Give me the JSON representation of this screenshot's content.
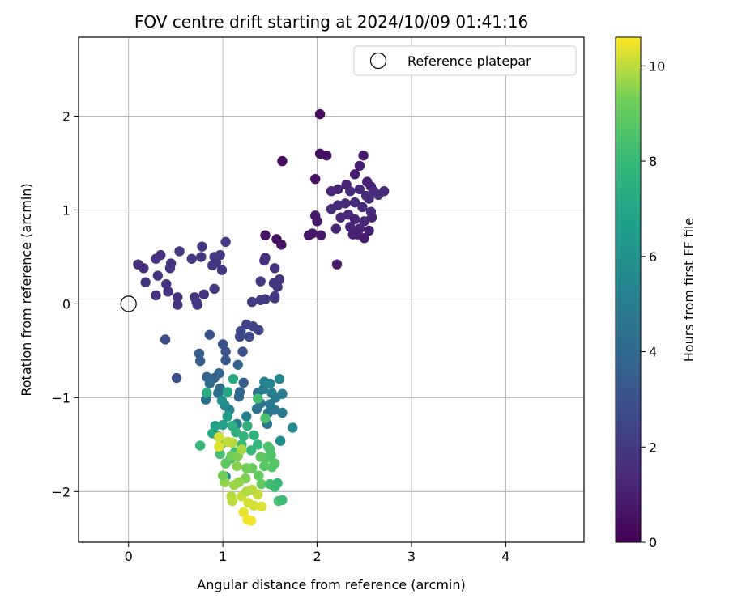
{
  "chart_data": {
    "type": "scatter",
    "title": "FOV centre drift starting at 2024/10/09 01:41:16",
    "xlabel": "Angular distance from reference (arcmin)",
    "ylabel": "Rotation from reference (arcmin)",
    "xlim": [
      -0.53,
      4.83
    ],
    "ylim": [
      -2.54,
      2.84
    ],
    "xticks": [
      0,
      1,
      2,
      3,
      4
    ],
    "yticks": [
      -2,
      -1,
      0,
      1,
      2
    ],
    "grid": true,
    "legend": {
      "placement": "top-right",
      "entries": [
        "Reference platepar"
      ]
    },
    "colormap": "viridis",
    "colorbar": {
      "label": "Hours from first FF file",
      "range": [
        0,
        10.6
      ],
      "ticks": [
        0,
        2,
        4,
        6,
        8,
        10
      ]
    },
    "reference_point": {
      "x": 0,
      "y": 0
    },
    "points": [
      [
        2.03,
        2.02,
        0.3
      ],
      [
        1.63,
        1.52,
        0.4
      ],
      [
        2.03,
        1.6,
        0.5
      ],
      [
        2.1,
        1.58,
        0.5
      ],
      [
        1.98,
        1.33,
        0.6
      ],
      [
        2.49,
        1.58,
        0.9
      ],
      [
        2.45,
        1.47,
        1.0
      ],
      [
        2.4,
        1.38,
        1.0
      ],
      [
        2.53,
        1.3,
        1.1
      ],
      [
        2.57,
        1.25,
        1.1
      ],
      [
        2.31,
        1.27,
        1.2
      ],
      [
        2.22,
        1.22,
        1.3
      ],
      [
        2.15,
        1.2,
        1.3
      ],
      [
        2.35,
        1.2,
        1.4
      ],
      [
        2.45,
        1.22,
        1.4
      ],
      [
        2.52,
        1.15,
        1.5
      ],
      [
        2.6,
        1.2,
        1.5
      ],
      [
        2.71,
        1.2,
        1.5
      ],
      [
        2.65,
        1.16,
        1.5
      ],
      [
        2.55,
        1.12,
        1.5
      ],
      [
        2.3,
        1.07,
        1.5
      ],
      [
        2.22,
        1.05,
        1.5
      ],
      [
        2.15,
        1.01,
        1.5
      ],
      [
        2.4,
        1.08,
        1.4
      ],
      [
        2.48,
        1.03,
        1.4
      ],
      [
        2.57,
        0.98,
        1.4
      ],
      [
        2.33,
        0.95,
        1.4
      ],
      [
        2.25,
        0.92,
        1.3
      ],
      [
        2.4,
        0.9,
        1.3
      ],
      [
        2.5,
        0.88,
        1.3
      ],
      [
        2.58,
        0.92,
        1.2
      ],
      [
        2.45,
        0.8,
        1.2
      ],
      [
        2.35,
        0.82,
        1.2
      ],
      [
        2.2,
        0.8,
        1.2
      ],
      [
        2.55,
        0.78,
        1.1
      ],
      [
        2.43,
        0.74,
        1.1
      ],
      [
        2.38,
        0.74,
        1.1
      ],
      [
        2.5,
        0.7,
        1.0
      ],
      [
        1.98,
        0.94,
        0.8
      ],
      [
        2.0,
        0.88,
        0.8
      ],
      [
        1.95,
        0.75,
        0.8
      ],
      [
        2.04,
        0.73,
        0.8
      ],
      [
        1.91,
        0.73,
        0.7
      ],
      [
        2.21,
        0.42,
        0.9
      ],
      [
        1.45,
        0.73,
        0.6
      ],
      [
        1.57,
        0.69,
        0.6
      ],
      [
        1.62,
        0.63,
        0.6
      ],
      [
        1.45,
        0.49,
        1.6
      ],
      [
        1.44,
        0.46,
        1.7
      ],
      [
        1.55,
        0.38,
        1.8
      ],
      [
        1.6,
        0.26,
        1.8
      ],
      [
        1.54,
        0.22,
        1.9
      ],
      [
        1.4,
        0.24,
        1.9
      ],
      [
        1.58,
        0.18,
        1.9
      ],
      [
        1.55,
        0.08,
        2.0
      ],
      [
        1.55,
        0.06,
        2.0
      ],
      [
        1.45,
        0.05,
        2.0
      ],
      [
        1.4,
        0.04,
        2.1
      ],
      [
        1.31,
        0.02,
        2.1
      ],
      [
        0.1,
        0.42,
        1.6
      ],
      [
        0.16,
        0.38,
        1.6
      ],
      [
        0.29,
        0.48,
        1.7
      ],
      [
        0.34,
        0.52,
        1.7
      ],
      [
        0.45,
        0.43,
        1.8
      ],
      [
        0.44,
        0.38,
        1.8
      ],
      [
        0.54,
        0.56,
        1.9
      ],
      [
        0.67,
        0.48,
        1.9
      ],
      [
        0.78,
        0.61,
        2.0
      ],
      [
        0.77,
        0.5,
        2.0
      ],
      [
        0.91,
        0.5,
        2.0
      ],
      [
        0.97,
        0.52,
        2.0
      ],
      [
        1.03,
        0.66,
        2.0
      ],
      [
        0.93,
        0.44,
        1.9
      ],
      [
        0.89,
        0.41,
        1.9
      ],
      [
        0.99,
        0.36,
        1.9
      ],
      [
        0.31,
        0.3,
        1.8
      ],
      [
        0.18,
        0.23,
        1.8
      ],
      [
        0.4,
        0.21,
        1.8
      ],
      [
        0.42,
        0.13,
        1.7
      ],
      [
        0.29,
        0.09,
        1.7
      ],
      [
        0.52,
        0.07,
        1.7
      ],
      [
        0.52,
        -0.01,
        1.8
      ],
      [
        0.7,
        0.07,
        1.8
      ],
      [
        0.72,
        0.02,
        1.9
      ],
      [
        0.73,
        -0.01,
        1.9
      ],
      [
        0.8,
        0.1,
        1.9
      ],
      [
        0.91,
        0.16,
        2.0
      ],
      [
        0.39,
        -0.38,
        2.8
      ],
      [
        0.51,
        -0.79,
        2.9
      ],
      [
        0.86,
        -0.33,
        3.0
      ],
      [
        1.0,
        -0.43,
        3.1
      ],
      [
        1.03,
        -0.51,
        3.1
      ],
      [
        1.03,
        -0.6,
        3.2
      ],
      [
        1.19,
        -0.29,
        2.6
      ],
      [
        1.18,
        -0.35,
        2.6
      ],
      [
        1.25,
        -0.22,
        2.5
      ],
      [
        1.32,
        -0.24,
        2.4
      ],
      [
        1.38,
        -0.28,
        2.4
      ],
      [
        1.28,
        -0.35,
        2.7
      ],
      [
        1.21,
        -0.51,
        3.0
      ],
      [
        0.75,
        -0.53,
        3.5
      ],
      [
        0.76,
        -0.61,
        3.5
      ],
      [
        0.83,
        -0.78,
        3.6
      ],
      [
        0.86,
        -0.8,
        3.7
      ],
      [
        0.91,
        -0.79,
        3.8
      ],
      [
        0.96,
        -0.74,
        3.8
      ],
      [
        1.16,
        -0.65,
        3.8
      ],
      [
        1.18,
        -0.94,
        3.9
      ],
      [
        1.17,
        -0.99,
        4.0
      ],
      [
        0.97,
        -0.9,
        4.2
      ],
      [
        0.95,
        -0.95,
        4.3
      ],
      [
        0.82,
        -1.02,
        4.4
      ],
      [
        0.86,
        -0.85,
        4.2
      ],
      [
        1.22,
        -0.84,
        3.5
      ],
      [
        1.37,
        -0.95,
        4.6
      ],
      [
        1.43,
        -0.91,
        5.0
      ],
      [
        1.44,
        -0.83,
        5.3
      ],
      [
        1.5,
        -0.85,
        5.4
      ],
      [
        1.6,
        -0.8,
        5.5
      ],
      [
        1.52,
        -0.95,
        5.2
      ],
      [
        1.56,
        -1.0,
        5.0
      ],
      [
        1.63,
        -0.96,
        5.1
      ],
      [
        1.5,
        -1.07,
        4.9
      ],
      [
        1.4,
        -1.06,
        4.6
      ],
      [
        1.36,
        -1.12,
        4.5
      ],
      [
        1.48,
        -1.16,
        4.7
      ],
      [
        1.55,
        -1.13,
        4.8
      ],
      [
        1.63,
        -1.16,
        4.9
      ],
      [
        1.74,
        -1.32,
        5.6
      ],
      [
        1.61,
        -1.46,
        5.8
      ],
      [
        1.47,
        -1.28,
        4.8
      ],
      [
        1.25,
        -1.2,
        5.2
      ],
      [
        1.15,
        -1.28,
        5.0
      ],
      [
        1.07,
        -1.13,
        5.4
      ],
      [
        1.02,
        -1.08,
        5.6
      ],
      [
        0.99,
        -1.03,
        6.0
      ],
      [
        1.05,
        -1.2,
        6.5
      ],
      [
        1.0,
        -1.29,
        6.8
      ],
      [
        0.92,
        -1.3,
        6.9
      ],
      [
        0.89,
        -1.38,
        7.1
      ],
      [
        0.95,
        -1.41,
        7.3
      ],
      [
        1.1,
        -1.3,
        7.5
      ],
      [
        1.14,
        -1.37,
        7.6
      ],
      [
        1.22,
        -1.41,
        7.8
      ],
      [
        1.26,
        -1.3,
        7.6
      ],
      [
        1.33,
        -1.4,
        7.7
      ],
      [
        1.37,
        -1.5,
        7.9
      ],
      [
        1.3,
        -1.56,
        8.0
      ],
      [
        1.2,
        -1.5,
        8.1
      ],
      [
        1.13,
        -1.58,
        8.2
      ],
      [
        1.08,
        -1.65,
        8.4
      ],
      [
        0.98,
        -1.5,
        8.1
      ],
      [
        0.97,
        -1.6,
        8.3
      ],
      [
        0.76,
        -1.51,
        8.0
      ],
      [
        1.03,
        -1.84,
        5.8
      ],
      [
        1.11,
        -0.8,
        7.2
      ],
      [
        1.05,
        -0.94,
        7.0
      ],
      [
        0.83,
        -0.95,
        7.4
      ],
      [
        1.37,
        -1.01,
        8.3
      ],
      [
        1.45,
        -1.22,
        8.5
      ],
      [
        1.5,
        -1.55,
        8.6
      ],
      [
        1.47,
        -1.64,
        8.8
      ],
      [
        1.4,
        -1.63,
        8.9
      ],
      [
        1.52,
        -1.74,
        8.7
      ],
      [
        1.44,
        -1.73,
        8.8
      ],
      [
        1.38,
        -1.83,
        9.0
      ],
      [
        1.31,
        -1.75,
        9.1
      ],
      [
        1.25,
        -1.75,
        9.3
      ],
      [
        1.24,
        -1.86,
        9.4
      ],
      [
        1.17,
        -1.9,
        9.6
      ],
      [
        1.12,
        -1.93,
        9.7
      ],
      [
        1.09,
        -2.05,
        9.9
      ],
      [
        1.1,
        -2.1,
        10.0
      ],
      [
        1.2,
        -2.05,
        10.1
      ],
      [
        1.27,
        -2.12,
        10.2
      ],
      [
        1.33,
        -2.15,
        10.2
      ],
      [
        1.41,
        -2.16,
        10.3
      ],
      [
        1.37,
        -2.03,
        10.1
      ],
      [
        1.31,
        -1.98,
        10.0
      ],
      [
        1.25,
        -2.0,
        9.9
      ],
      [
        1.22,
        -2.22,
        10.4
      ],
      [
        1.26,
        -2.3,
        10.5
      ],
      [
        1.3,
        -2.31,
        10.5
      ],
      [
        1.02,
        -1.9,
        9.6
      ],
      [
        1.0,
        -1.83,
        9.3
      ],
      [
        1.03,
        -1.7,
        8.9
      ],
      [
        1.09,
        -1.62,
        9.2
      ],
      [
        1.16,
        -1.62,
        9.4
      ],
      [
        1.2,
        -1.55,
        9.8
      ],
      [
        1.1,
        -1.48,
        9.9
      ],
      [
        1.05,
        -1.47,
        10.0
      ],
      [
        0.96,
        -1.42,
        10.2
      ],
      [
        0.96,
        -1.52,
        10.3
      ],
      [
        1.15,
        -1.73,
        9.5
      ],
      [
        1.41,
        -1.92,
        9.0
      ],
      [
        1.5,
        -1.92,
        8.3
      ],
      [
        1.55,
        -1.95,
        8.1
      ],
      [
        1.58,
        -1.91,
        8.0
      ],
      [
        1.59,
        -2.1,
        8.4
      ],
      [
        1.63,
        -2.09,
        8.2
      ],
      [
        1.51,
        -1.61,
        8.6
      ],
      [
        1.48,
        -1.52,
        8.5
      ],
      [
        1.55,
        -1.7,
        8.7
      ]
    ]
  }
}
